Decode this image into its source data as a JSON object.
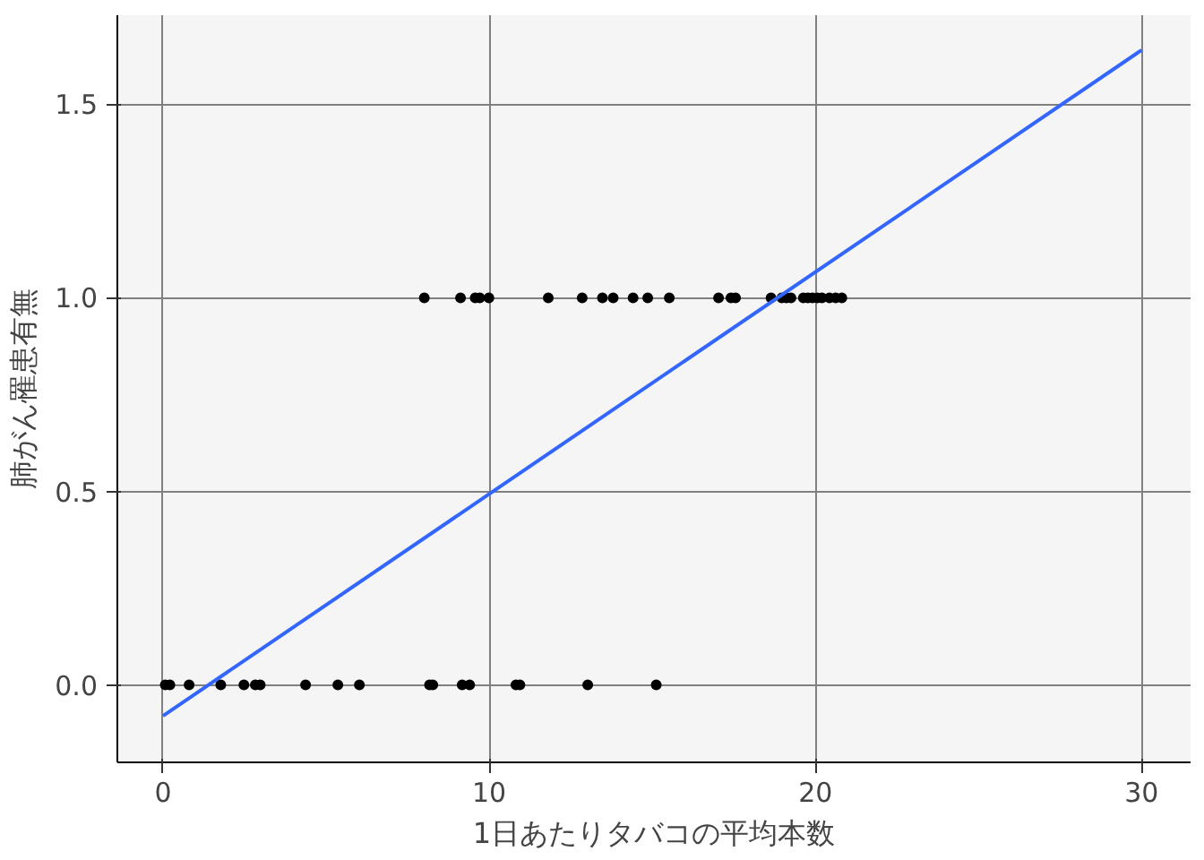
{
  "chart_data": {
    "type": "scatter",
    "xlabel": "1日あたりタバコの平均本数",
    "ylabel": "肺がん罹患有無",
    "xlim": [
      -1.4,
      31.5
    ],
    "ylim": [
      -0.2,
      1.73
    ],
    "xticks": [
      0,
      10,
      20,
      30
    ],
    "yticks": [
      {
        "value": 0,
        "label": "0.0"
      },
      {
        "value": 0.5,
        "label": "0.5"
      },
      {
        "value": 1,
        "label": "1.0"
      },
      {
        "value": 1.5,
        "label": "1.5"
      }
    ],
    "grid": true,
    "marker": "circle",
    "series": [
      {
        "color": "#000000",
        "x": [
          0.07,
          0.21,
          0.8,
          1.77,
          2.48,
          2.83,
          2.98,
          4.37,
          5.36,
          6.02,
          8.17,
          8.27,
          9.17,
          9.4,
          10.82,
          10.94,
          13.02,
          15.12,
          8.01,
          9.12,
          9.57,
          9.71,
          9.99,
          11.81,
          12.85,
          13.47,
          13.8,
          14.41,
          14.86,
          15.52,
          17.03,
          17.41,
          17.55,
          18.64,
          18.97,
          19.11,
          19.25,
          19.63,
          19.77,
          19.91,
          20.06,
          20.2,
          20.43,
          20.62,
          20.81
        ],
        "values": [
          0,
          0,
          0,
          0,
          0,
          0,
          0,
          0,
          0,
          0,
          0,
          0,
          0,
          0,
          0,
          0,
          0,
          0,
          1,
          1,
          1,
          1,
          1,
          1,
          1,
          1,
          1,
          1,
          1,
          1,
          1,
          1,
          1,
          1,
          1,
          1,
          1,
          1,
          1,
          1,
          1,
          1,
          1,
          1,
          1
        ]
      },
      {
        "type": "line",
        "color": "#3366ff",
        "x": [
          0,
          30
        ],
        "values": [
          -0.08,
          1.64
        ],
        "marker": "none"
      }
    ]
  }
}
